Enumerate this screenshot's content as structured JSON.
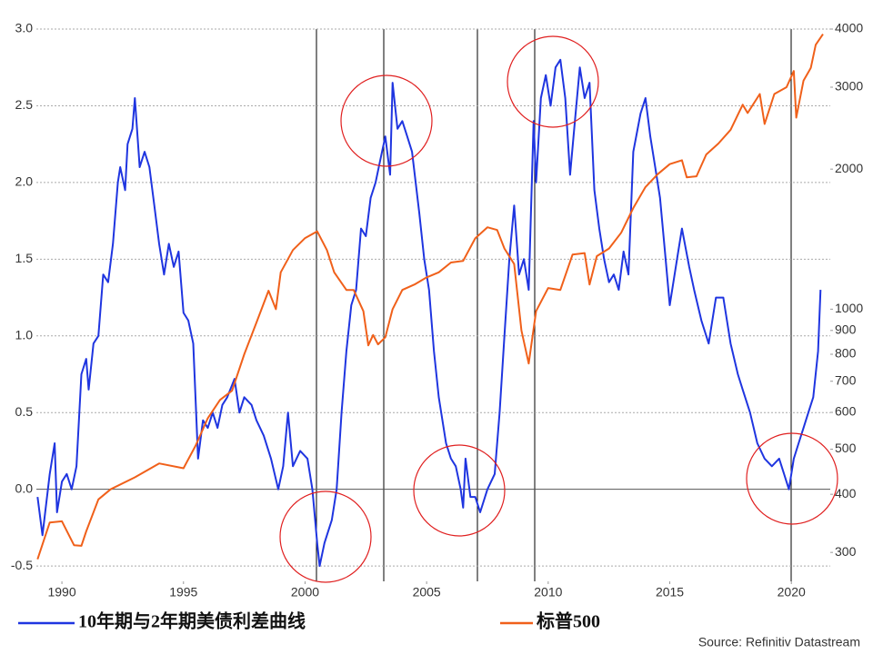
{
  "chart_data": {
    "type": "line",
    "xlim": [
      1988.95,
      2021.6
    ],
    "xticks": [
      1990,
      1995,
      2000,
      2005,
      2010,
      2015,
      2020
    ],
    "ylim": [
      -0.6,
      3.0
    ],
    "yticks": [
      -0.5,
      {
        "value": 0,
        "label": "0.0"
      },
      0.5,
      {
        "value": 1,
        "label": "1.0"
      },
      1.5,
      {
        "value": 2,
        "label": "2.0"
      },
      2.5,
      {
        "value": 3,
        "label": "3.0"
      }
    ],
    "y2lim": [
      260,
      4000
    ],
    "y2log": true,
    "y2ticks": [
      300,
      400,
      500,
      600,
      700,
      800,
      900,
      1000,
      2000,
      3000,
      4000
    ],
    "grid": true,
    "series": [
      {
        "name": "10年期与2年期美债利差曲线",
        "color": "#1f35e0",
        "x": [
          1989.0,
          1989.2,
          1989.5,
          1989.7,
          1989.8,
          1990.0,
          1990.2,
          1990.4,
          1990.6,
          1990.8,
          1991.0,
          1991.1,
          1991.3,
          1991.5,
          1991.7,
          1991.9,
          1992.1,
          1992.3,
          1992.4,
          1992.6,
          1992.7,
          1992.9,
          1993.0,
          1993.2,
          1993.4,
          1993.6,
          1993.8,
          1994.0,
          1994.2,
          1994.4,
          1994.6,
          1994.8,
          1995.0,
          1995.2,
          1995.4,
          1995.6,
          1995.8,
          1996.0,
          1996.2,
          1996.4,
          1996.6,
          1996.8,
          1997.1,
          1997.3,
          1997.5,
          1997.8,
          1998.0,
          1998.3,
          1998.6,
          1998.9,
          1999.1,
          1999.3,
          1999.5,
          1999.8,
          2000.1,
          2000.3,
          2000.5,
          2000.6,
          2000.8,
          2000.9,
          2001.1,
          2001.3,
          2001.5,
          2001.7,
          2001.9,
          2002.1,
          2002.3,
          2002.5,
          2002.7,
          2002.9,
          2003.1,
          2003.3,
          2003.5,
          2003.6,
          2003.8,
          2004.0,
          2004.2,
          2004.4,
          2004.7,
          2004.9,
          2005.1,
          2005.3,
          2005.5,
          2005.8,
          2006.0,
          2006.2,
          2006.4,
          2006.5,
          2006.6,
          2006.8,
          2007.0,
          2007.2,
          2007.5,
          2007.8,
          2008.0,
          2008.2,
          2008.4,
          2008.6,
          2008.8,
          2009.0,
          2009.2,
          2009.4,
          2009.5,
          2009.7,
          2009.9,
          2010.1,
          2010.3,
          2010.5,
          2010.7,
          2010.9,
          2011.1,
          2011.3,
          2011.5,
          2011.7,
          2011.9,
          2012.1,
          2012.3,
          2012.5,
          2012.7,
          2012.9,
          2013.1,
          2013.3,
          2013.5,
          2013.8,
          2014.0,
          2014.2,
          2014.4,
          2014.6,
          2014.8,
          2015.0,
          2015.3,
          2015.5,
          2015.8,
          2016.0,
          2016.3,
          2016.6,
          2016.9,
          2017.2,
          2017.5,
          2017.8,
          2018.0,
          2018.3,
          2018.6,
          2018.9,
          2019.2,
          2019.5,
          2019.7,
          2019.9,
          2020.1,
          2020.3,
          2020.5,
          2020.7,
          2020.9,
          2021.1,
          2021.2
        ],
        "values": [
          -0.05,
          -0.3,
          0.1,
          0.3,
          -0.15,
          0.05,
          0.1,
          0.0,
          0.15,
          0.75,
          0.85,
          0.65,
          0.95,
          1.0,
          1.4,
          1.35,
          1.6,
          2.0,
          2.1,
          1.95,
          2.25,
          2.35,
          2.55,
          2.1,
          2.2,
          2.1,
          1.85,
          1.6,
          1.4,
          1.6,
          1.45,
          1.55,
          1.15,
          1.1,
          0.95,
          0.2,
          0.45,
          0.4,
          0.5,
          0.4,
          0.55,
          0.6,
          0.72,
          0.5,
          0.6,
          0.55,
          0.45,
          0.35,
          0.2,
          0.0,
          0.15,
          0.5,
          0.15,
          0.25,
          0.2,
          0.0,
          -0.35,
          -0.5,
          -0.35,
          -0.3,
          -0.2,
          0.0,
          0.5,
          0.9,
          1.2,
          1.3,
          1.7,
          1.65,
          1.9,
          2.0,
          2.15,
          2.3,
          2.05,
          2.65,
          2.35,
          2.4,
          2.3,
          2.2,
          1.8,
          1.5,
          1.3,
          0.9,
          0.6,
          0.3,
          0.2,
          0.15,
          0.0,
          -0.12,
          0.2,
          -0.05,
          -0.05,
          -0.15,
          0.0,
          0.1,
          0.5,
          1.0,
          1.5,
          1.85,
          1.4,
          1.5,
          1.3,
          2.4,
          2.0,
          2.55,
          2.7,
          2.5,
          2.75,
          2.8,
          2.55,
          2.05,
          2.4,
          2.75,
          2.55,
          2.65,
          1.95,
          1.7,
          1.5,
          1.35,
          1.4,
          1.3,
          1.55,
          1.4,
          2.2,
          2.45,
          2.55,
          2.3,
          2.1,
          1.9,
          1.55,
          1.2,
          1.5,
          1.7,
          1.45,
          1.3,
          1.1,
          0.95,
          1.25,
          1.25,
          0.95,
          0.75,
          0.65,
          0.5,
          0.3,
          0.2,
          0.15,
          0.2,
          0.1,
          0.0,
          0.2,
          0.3,
          0.4,
          0.5,
          0.6,
          0.9,
          1.3
        ]
      },
      {
        "name": "标普500",
        "color": "#f0601a",
        "axis": "y2",
        "x": [
          1989.0,
          1989.5,
          1990.0,
          1990.5,
          1990.8,
          1991.0,
          1991.5,
          1992.0,
          1993.0,
          1994.0,
          1995.0,
          1995.5,
          1996.0,
          1996.5,
          1997.0,
          1997.5,
          1998.0,
          1998.5,
          1998.8,
          1999.0,
          1999.5,
          2000.0,
          2000.5,
          2000.9,
          2001.2,
          2001.7,
          2002.0,
          2002.4,
          2002.6,
          2002.8,
          2003.0,
          2003.3,
          2003.6,
          2004.0,
          2004.5,
          2005.0,
          2005.5,
          2006.0,
          2006.5,
          2007.0,
          2007.5,
          2007.9,
          2008.2,
          2008.6,
          2008.9,
          2009.2,
          2009.5,
          2010.0,
          2010.5,
          2011.0,
          2011.5,
          2011.7,
          2012.0,
          2012.5,
          2013.0,
          2013.5,
          2014.0,
          2014.5,
          2015.0,
          2015.5,
          2015.7,
          2016.1,
          2016.5,
          2017.0,
          2017.5,
          2018.0,
          2018.2,
          2018.7,
          2018.9,
          2019.3,
          2019.8,
          2020.1,
          2020.2,
          2020.5,
          2020.8,
          2021.0,
          2021.3
        ],
        "values": [
          290,
          348,
          350,
          311,
          310,
          333,
          390,
          410,
          435,
          466,
          455,
          509,
          583,
          638,
          668,
          800,
          936,
          1096,
          1000,
          1200,
          1340,
          1422,
          1470,
          1340,
          1200,
          1100,
          1100,
          990,
          836,
          880,
          840,
          870,
          1000,
          1100,
          1130,
          1170,
          1200,
          1260,
          1270,
          1420,
          1500,
          1480,
          1350,
          1250,
          900,
          764,
          990,
          1110,
          1100,
          1310,
          1320,
          1130,
          1300,
          1350,
          1460,
          1650,
          1830,
          1950,
          2050,
          2090,
          1920,
          1930,
          2150,
          2270,
          2430,
          2750,
          2640,
          2900,
          2500,
          2900,
          3000,
          3250,
          2580,
          3100,
          3300,
          3700,
          3900
        ]
      }
    ],
    "source": "Source: Refinitiv Datastream"
  }
}
